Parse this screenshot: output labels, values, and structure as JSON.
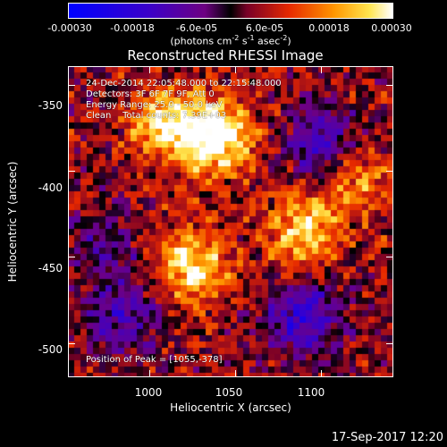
{
  "colorbar": {
    "ticks": [
      "-0.00030",
      "-0.00018",
      "-6.0e-05",
      "6.0e-05",
      "0.00018",
      "0.00030"
    ],
    "unit_prefix": "(photons cm",
    "unit_sup1": "-2",
    "unit_mid": " s",
    "unit_sup2": "-1",
    "unit_mid2": " asec",
    "unit_sup3": "-2",
    "unit_suffix": ")"
  },
  "chart_data": {
    "type": "heatmap",
    "title": "Reconstructed RHESSI Image",
    "xlabel": "Heliocentric X (arcsec)",
    "ylabel": "Heliocentric Y (arcsec)",
    "x_ticks": [
      "1000",
      "1050",
      "1100"
    ],
    "y_ticks": [
      "-350",
      "-400",
      "-450",
      "-500"
    ],
    "x_tick_values": [
      1000,
      1050,
      1100
    ],
    "y_tick_values": [
      -350,
      -400,
      -450,
      -500
    ],
    "xlim": [
      953,
      1142
    ],
    "ylim": [
      -520,
      -339
    ],
    "color_range": [
      -0.0003,
      0.0003
    ],
    "peak_position": [
      1055,
      -378
    ],
    "bright_regions": [
      {
        "x": 1040,
        "y": -380,
        "level": 1.0
      },
      {
        "x": 1010,
        "y": -372,
        "level": 0.7
      },
      {
        "x": 1025,
        "y": -455,
        "level": 0.8
      },
      {
        "x": 1090,
        "y": -435,
        "level": 0.7
      },
      {
        "x": 1120,
        "y": -405,
        "level": 0.5
      }
    ],
    "dim_regions": [
      {
        "x": 1100,
        "y": -385,
        "level": -0.6
      },
      {
        "x": 1090,
        "y": -485,
        "level": -0.7
      },
      {
        "x": 985,
        "y": -485,
        "level": -0.5
      },
      {
        "x": 975,
        "y": -445,
        "level": -0.35
      }
    ]
  },
  "info": {
    "time": "24-Dec-2014 22:05:48.000 to 22:15:48.000",
    "detectors": "Detectors: 3F 6F 7F 9F, Att 0",
    "energy": "Energy Range: 25.0 - 50.0 keV",
    "clean": "Clean    Total counts: 7.39E+03",
    "peak": "Position of Peak = [1055,-378]"
  },
  "footer": "17-Sep-2017 12:20"
}
